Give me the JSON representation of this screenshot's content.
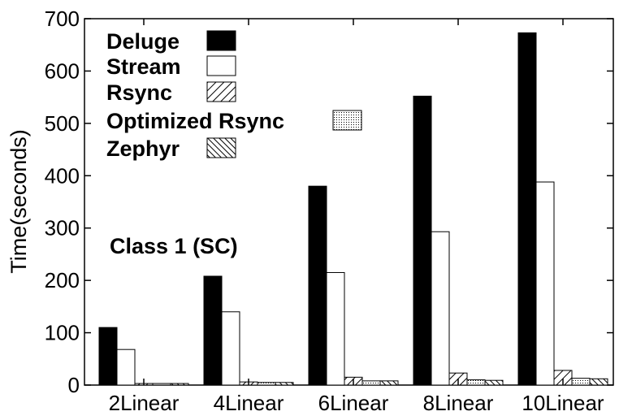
{
  "chart_data": {
    "type": "bar",
    "title": "",
    "xlabel": "",
    "ylabel": "Time(seconds)",
    "ylim": [
      0,
      700
    ],
    "yticks": [
      0,
      100,
      200,
      300,
      400,
      500,
      600,
      700
    ],
    "categories": [
      "2Linear",
      "4Linear",
      "6Linear",
      "8Linear",
      "10Linear"
    ],
    "series": [
      {
        "name": "Deluge",
        "pattern": "solid-black",
        "values": [
          110,
          208,
          380,
          552,
          673
        ]
      },
      {
        "name": "Stream",
        "pattern": "white",
        "values": [
          68,
          140,
          215,
          293,
          388
        ]
      },
      {
        "name": "Rsync",
        "pattern": "diagonal-hatch",
        "values": [
          3,
          6,
          15,
          23,
          28
        ]
      },
      {
        "name": "Optimized Rsync",
        "pattern": "dots",
        "values": [
          3,
          5,
          8,
          10,
          13
        ]
      },
      {
        "name": "Zephyr",
        "pattern": "dense-hatch",
        "values": [
          3,
          5,
          8,
          9,
          12
        ]
      }
    ],
    "annotation": "Class 1 (SC)",
    "legend_position": "top-left",
    "grid": false,
    "colors": {
      "bar_fill_dark": "#000000",
      "bar_fill_light": "#ffffff",
      "stroke": "#000000"
    }
  }
}
